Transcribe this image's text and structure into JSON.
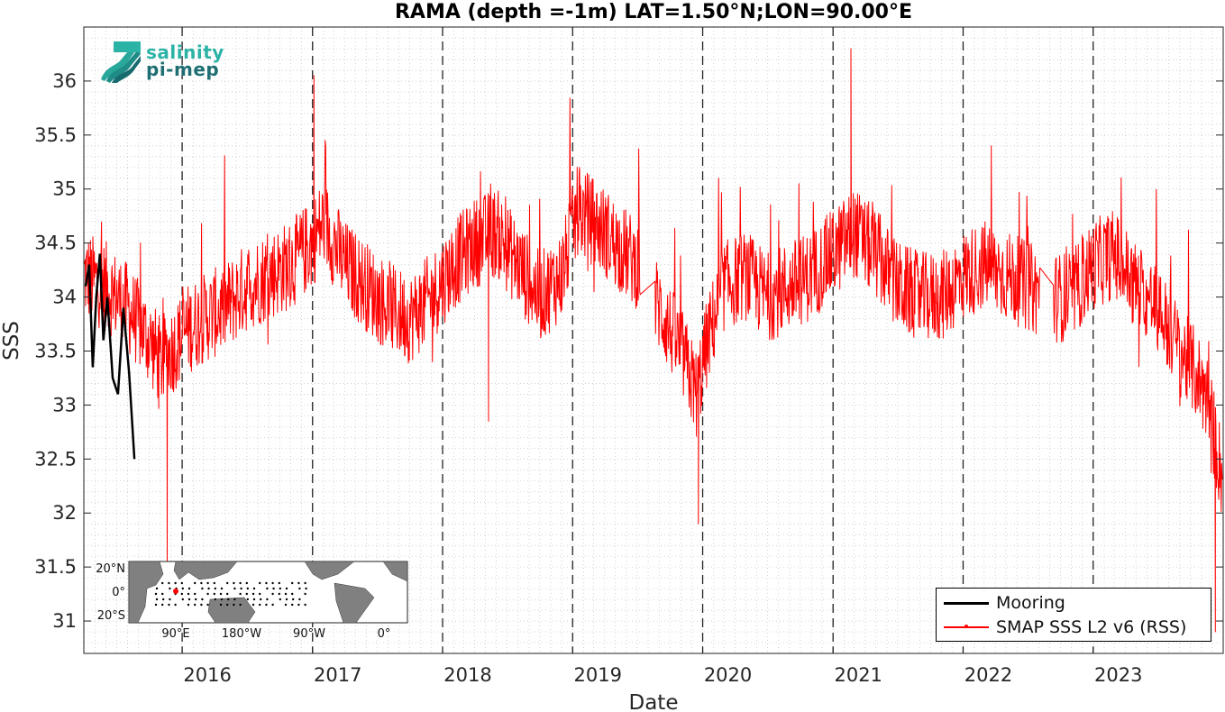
{
  "chart_data": {
    "type": "line",
    "title": "RAMA (depth =-1m) LAT=1.50°N;LON=90.00°E",
    "xlabel": "Date",
    "ylabel": "SSS",
    "xlim": [
      "2015-03-31",
      "2024-01-01"
    ],
    "ylim": [
      30.7,
      36.5
    ],
    "x_ticks": [
      "2016",
      "2017",
      "2018",
      "2019",
      "2020",
      "2021",
      "2022",
      "2023"
    ],
    "y_ticks": [
      "31",
      "31.5",
      "32",
      "32.5",
      "33",
      "33.5",
      "34",
      "34.5",
      "35",
      "35.5",
      "36"
    ],
    "grid": "minor-dotted",
    "year_dividers": [
      "2016-01-01",
      "2017-01-01",
      "2018-01-01",
      "2019-01-01",
      "2020-01-01",
      "2021-01-01",
      "2022-01-01",
      "2023-01-01"
    ],
    "legend_position": "bottom-right",
    "series": [
      {
        "name": "Mooring",
        "color": "#000000",
        "x": [
          "2015-04-05",
          "2015-04-15",
          "2015-04-25",
          "2015-05-05",
          "2015-05-15",
          "2015-05-25",
          "2015-06-05",
          "2015-06-20",
          "2015-07-05",
          "2015-07-20",
          "2015-08-05",
          "2015-08-20"
        ],
        "y": [
          34.1,
          34.3,
          33.35,
          34.0,
          34.4,
          33.6,
          34.0,
          33.25,
          33.1,
          33.9,
          33.3,
          32.5
        ]
      },
      {
        "name": "SMAP SSS L2 v6 (RSS)",
        "color": "#ff0000",
        "x": [
          "2015-04-01",
          "2015-06-01",
          "2015-08-01",
          "2015-10-01",
          "2015-11-01",
          "2015-12-01",
          "2016-01-15",
          "2016-03-01",
          "2016-05-01",
          "2016-07-01",
          "2016-09-01",
          "2016-11-01",
          "2017-01-01",
          "2017-02-01",
          "2017-04-01",
          "2017-06-01",
          "2017-08-01",
          "2017-10-01",
          "2017-12-01",
          "2018-02-01",
          "2018-04-01",
          "2018-06-01",
          "2018-08-01",
          "2018-10-01",
          "2018-12-01",
          "2019-01-15",
          "2019-03-01",
          "2019-05-01",
          "2019-07-01",
          "2019-09-01",
          "2019-11-01",
          "2019-12-15",
          "2020-01-15",
          "2020-03-01",
          "2020-05-01",
          "2020-07-01",
          "2020-09-01",
          "2020-11-01",
          "2021-01-01",
          "2021-03-01",
          "2021-05-01",
          "2021-07-01",
          "2021-09-01",
          "2021-11-01",
          "2022-01-01",
          "2022-03-01",
          "2022-05-01",
          "2022-07-01",
          "2022-09-01",
          "2022-11-01",
          "2023-01-01",
          "2023-03-01",
          "2023-05-01",
          "2023-07-01",
          "2023-09-01",
          "2023-10-15",
          "2023-11-15",
          "2023-12-31"
        ],
        "y": [
          34.2,
          34.1,
          33.9,
          33.6,
          33.4,
          33.5,
          33.7,
          33.8,
          33.9,
          34.1,
          34.2,
          34.3,
          34.5,
          34.7,
          34.3,
          34.1,
          33.9,
          33.8,
          34.0,
          34.3,
          34.5,
          34.6,
          34.3,
          34.0,
          34.2,
          34.8,
          34.7,
          34.5,
          34.3,
          33.9,
          33.5,
          33.1,
          33.6,
          34.1,
          34.2,
          34.0,
          34.1,
          34.2,
          34.4,
          34.6,
          34.4,
          34.1,
          34.0,
          34.0,
          34.2,
          34.3,
          34.2,
          34.1,
          34.0,
          34.0,
          34.3,
          34.4,
          34.1,
          33.9,
          33.5,
          33.3,
          33.1,
          32.3
        ],
        "noise": 0.42,
        "spike_max": 36.3,
        "spike_min": 31.4
      }
    ],
    "inset_map": {
      "lat_labels": [
        "20°N",
        "0°",
        "20°S"
      ],
      "lon_labels": [
        "90°E",
        "180°W",
        "90°W",
        "0°"
      ],
      "highlight_color": "#ff0000",
      "land_color": "#808080"
    }
  },
  "logo": {
    "line1": "salinity",
    "line2": "pi-mep"
  }
}
